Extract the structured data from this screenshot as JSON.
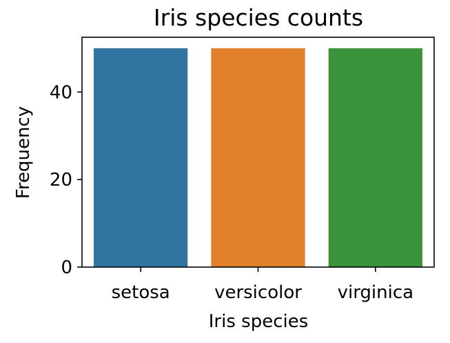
{
  "chart_data": {
    "type": "bar",
    "title": "Iris species counts",
    "xlabel": "Iris species",
    "ylabel": "Frequency",
    "categories": [
      "setosa",
      "versicolor",
      "virginica"
    ],
    "values": [
      50,
      50,
      50
    ],
    "colors": [
      "#3274a1",
      "#e1812c",
      "#3a923a"
    ],
    "ylim": [
      0,
      52.5
    ],
    "yticks": [
      0,
      20,
      40
    ],
    "grid": false,
    "legend": "none"
  }
}
